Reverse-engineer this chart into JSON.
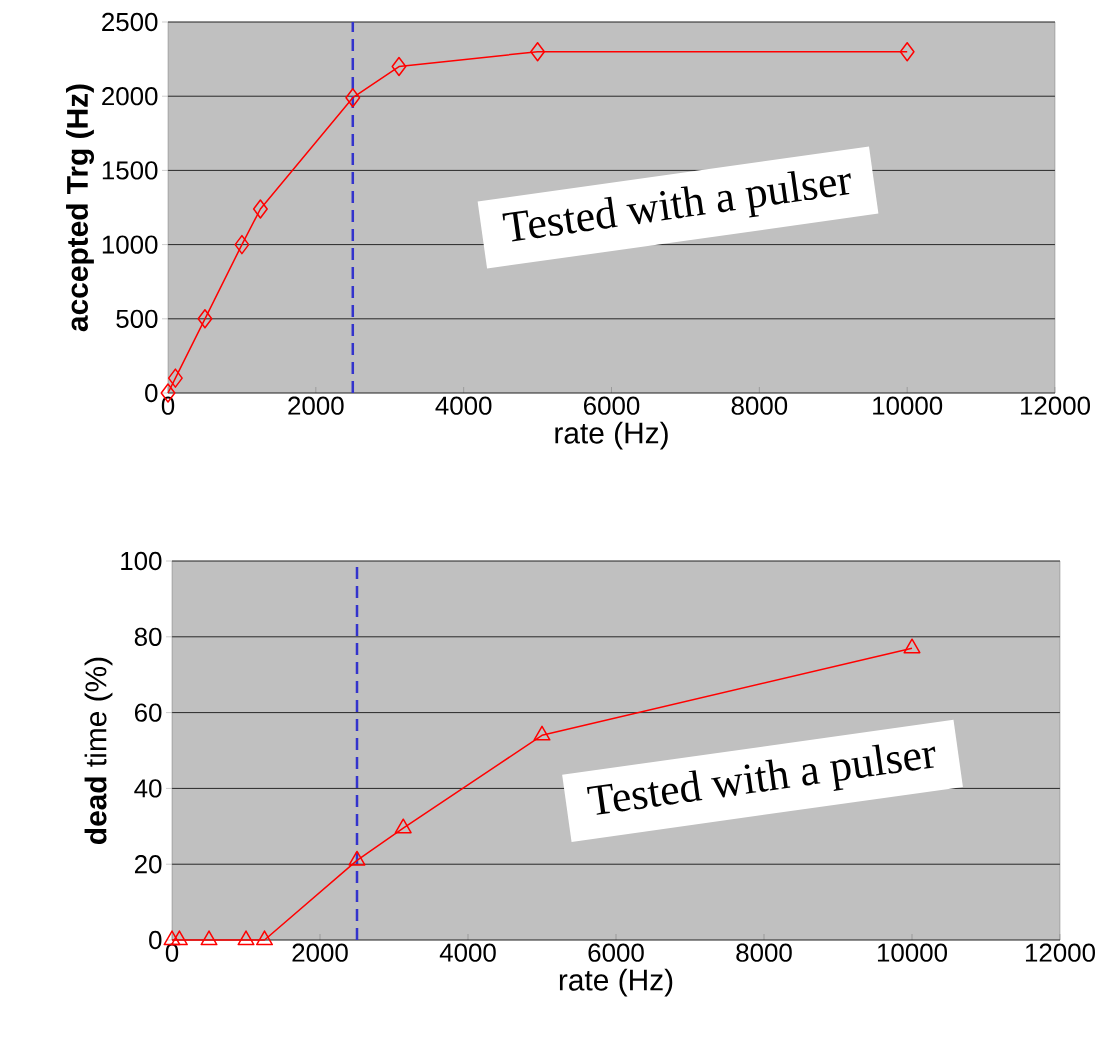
{
  "chart_data": [
    {
      "type": "line",
      "xlabel": "rate (Hz)",
      "ylabel": "accepted Trg (Hz)",
      "annotations": [
        "Tested with a pulser"
      ],
      "x": [
        0,
        100,
        500,
        1000,
        1250,
        2500,
        3125,
        5000,
        10000
      ],
      "series": [
        {
          "color": "#ff0000",
          "values": [
            0,
            100,
            500,
            1000,
            1240,
            1990,
            2200,
            2300,
            2300
          ]
        }
      ],
      "xlim": [
        0,
        12000
      ],
      "xticks": [
        0,
        2000,
        4000,
        6000,
        8000,
        10000,
        12000
      ],
      "ylim": [
        0,
        2500
      ],
      "yticks": [
        0,
        500,
        1000,
        1500,
        2000,
        2500
      ],
      "grid": "y",
      "marker": "diamond",
      "line_style": "solid",
      "ref_lines": [
        {
          "axis": "x",
          "value": 2500,
          "color": "#3333cc",
          "line_style": "dashed"
        }
      ]
    },
    {
      "type": "line",
      "xlabel": "rate (Hz)",
      "ylabel": "**dead** time (%)",
      "annotations": [
        "Tested with a pulser"
      ],
      "x": [
        0,
        100,
        500,
        1000,
        1250,
        2500,
        3125,
        5000,
        10000
      ],
      "series": [
        {
          "color": "#ff0000",
          "values": [
            0,
            0,
            0,
            0,
            0,
            21,
            29.5,
            54,
            77
          ]
        }
      ],
      "xlim": [
        0,
        12000
      ],
      "xticks": [
        0,
        2000,
        4000,
        6000,
        8000,
        10000,
        12000
      ],
      "ylim": [
        0,
        100
      ],
      "yticks": [
        0,
        20,
        40,
        60,
        80,
        100
      ],
      "grid": "y",
      "marker": "triangle",
      "line_style": "solid",
      "ref_lines": [
        {
          "axis": "x",
          "value": 2500,
          "color": "#3333cc",
          "line_style": "dashed"
        }
      ]
    }
  ]
}
